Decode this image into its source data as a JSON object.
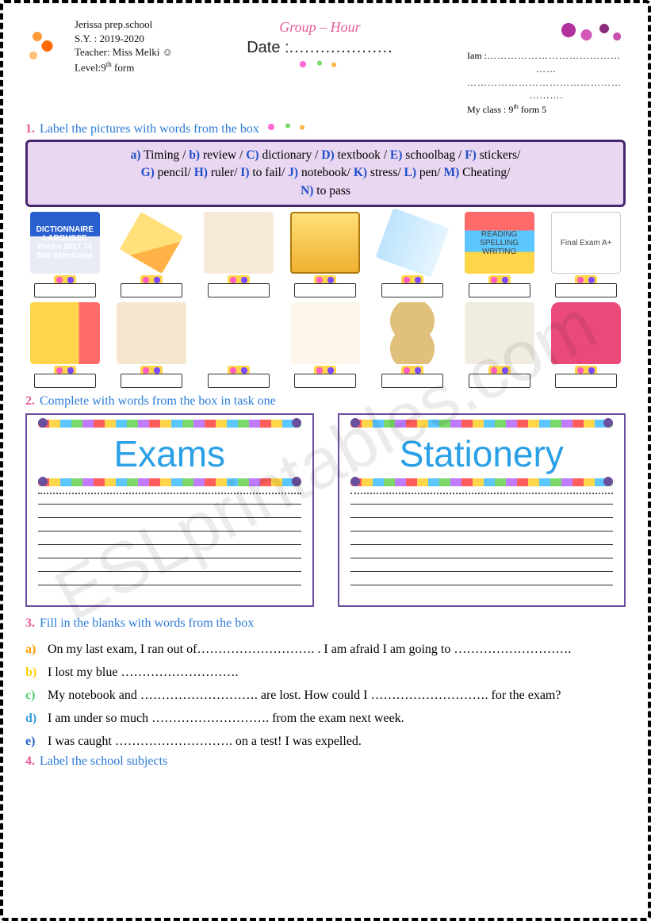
{
  "header": {
    "school": "Jerissa prep.school",
    "school_year": "S.Y. : 2019-2020",
    "teacher": "Teacher: Miss Melki ☺",
    "level_prefix": "Level:9",
    "level_suffix": "th",
    "level_tail": " form",
    "group_hour": "Group – Hour",
    "date_label": "Date :",
    "date_dots": "....................",
    "iam_label": "Iam  :",
    "iam_dots1": "…………………………………",
    "iam_dots2": "……",
    "iam_dots3": "………………………………………",
    "iam_dots4": "……….",
    "myclass_label": "My class  : 9",
    "myclass_suffix": "th",
    "myclass_tail": " form 5"
  },
  "task1": {
    "num": "1.",
    "text": "Label the pictures with words from the box",
    "words": "a) Timing / b) review / C) dictionary / D) textbook/ E) schoolbag/ F) stickers/ G) pencil/ H) ruler/ I) to fail / J) notebook/ K) stress/ L) pen/ M) Cheating/ N) to pass",
    "word_items": [
      {
        "k": "a",
        "w": "Timing"
      },
      {
        "k": "b",
        "w": "review"
      },
      {
        "k": "C",
        "w": "dictionary"
      },
      {
        "k": "D",
        "w": "textbook"
      },
      {
        "k": "E",
        "w": "schoolbag"
      },
      {
        "k": "F",
        "w": "stickers"
      },
      {
        "k": "G",
        "w": "pencil"
      },
      {
        "k": "H",
        "w": "ruler"
      },
      {
        "k": "I",
        "w": "to fail"
      },
      {
        "k": "J",
        "w": "notebook"
      },
      {
        "k": "K",
        "w": "stress"
      },
      {
        "k": "L",
        "w": "pen"
      },
      {
        "k": "M",
        "w": "Cheating"
      },
      {
        "k": "N",
        "w": "to pass"
      }
    ],
    "pictures_row1": [
      {
        "name": "dictionary",
        "hint": "DICTIONNAIRE LAROUSSE Poche 2017 74 000 définitions",
        "cls": "p-dict"
      },
      {
        "name": "pencil-char",
        "hint": "",
        "cls": "p-pencil2"
      },
      {
        "name": "cheating",
        "hint": "",
        "cls": "p-cheat"
      },
      {
        "name": "notebook",
        "hint": "",
        "cls": "p-notebook"
      },
      {
        "name": "ruler",
        "hint": "",
        "cls": "p-ruler"
      },
      {
        "name": "textbook",
        "hint": "READING SPELLING WRITING",
        "cls": "p-books"
      },
      {
        "name": "to-pass",
        "hint": "Final Exam A+",
        "cls": "p-topass"
      }
    ],
    "pictures_row2": [
      {
        "name": "pencil",
        "hint": "",
        "cls": "p-pencil"
      },
      {
        "name": "review",
        "hint": "",
        "cls": "p-review"
      },
      {
        "name": "stickers",
        "hint": "",
        "cls": "p-stickers"
      },
      {
        "name": "to-fail",
        "hint": "",
        "cls": "p-fail"
      },
      {
        "name": "timing",
        "hint": "",
        "cls": "p-timing"
      },
      {
        "name": "stress",
        "hint": "",
        "cls": "p-stress"
      },
      {
        "name": "schoolbag",
        "hint": "",
        "cls": "p-bag"
      }
    ]
  },
  "task2": {
    "num": "2.",
    "text": "Complete with words from the box in task one",
    "left_title": "Exams",
    "right_title": "Stationery"
  },
  "task3": {
    "num": "3.",
    "text": "Fill in the blanks with words from the box",
    "q": [
      {
        "l": "a)",
        "cls": "la",
        "t": "On my last exam, I ran out of………………………. . I am afraid I am going to ………………………."
      },
      {
        "l": "b)",
        "cls": "lb",
        "t": "I lost my blue ………………………."
      },
      {
        "l": "c)",
        "cls": "lc",
        "t": "My notebook and ………………………. are lost. How could I ………………………. for the exam?"
      },
      {
        "l": "d)",
        "cls": "ld",
        "t": "I am under so much  ………………………. from the exam next week."
      },
      {
        "l": "e)",
        "cls": "le",
        "t": "I was caught ………………………. on a test! I was expelled."
      }
    ]
  },
  "task4": {
    "num": "4.",
    "text": "Label the school subjects"
  },
  "watermark": "ESLprintables.com",
  "colors": {
    "task_num": "#e85a9a",
    "task_text": "#2b7bd9",
    "wordbox_border": "#48266e",
    "wordbox_bg": "#e9d6f0",
    "col_title": "#2aa0e6",
    "col_border": "#6a4f9e"
  }
}
